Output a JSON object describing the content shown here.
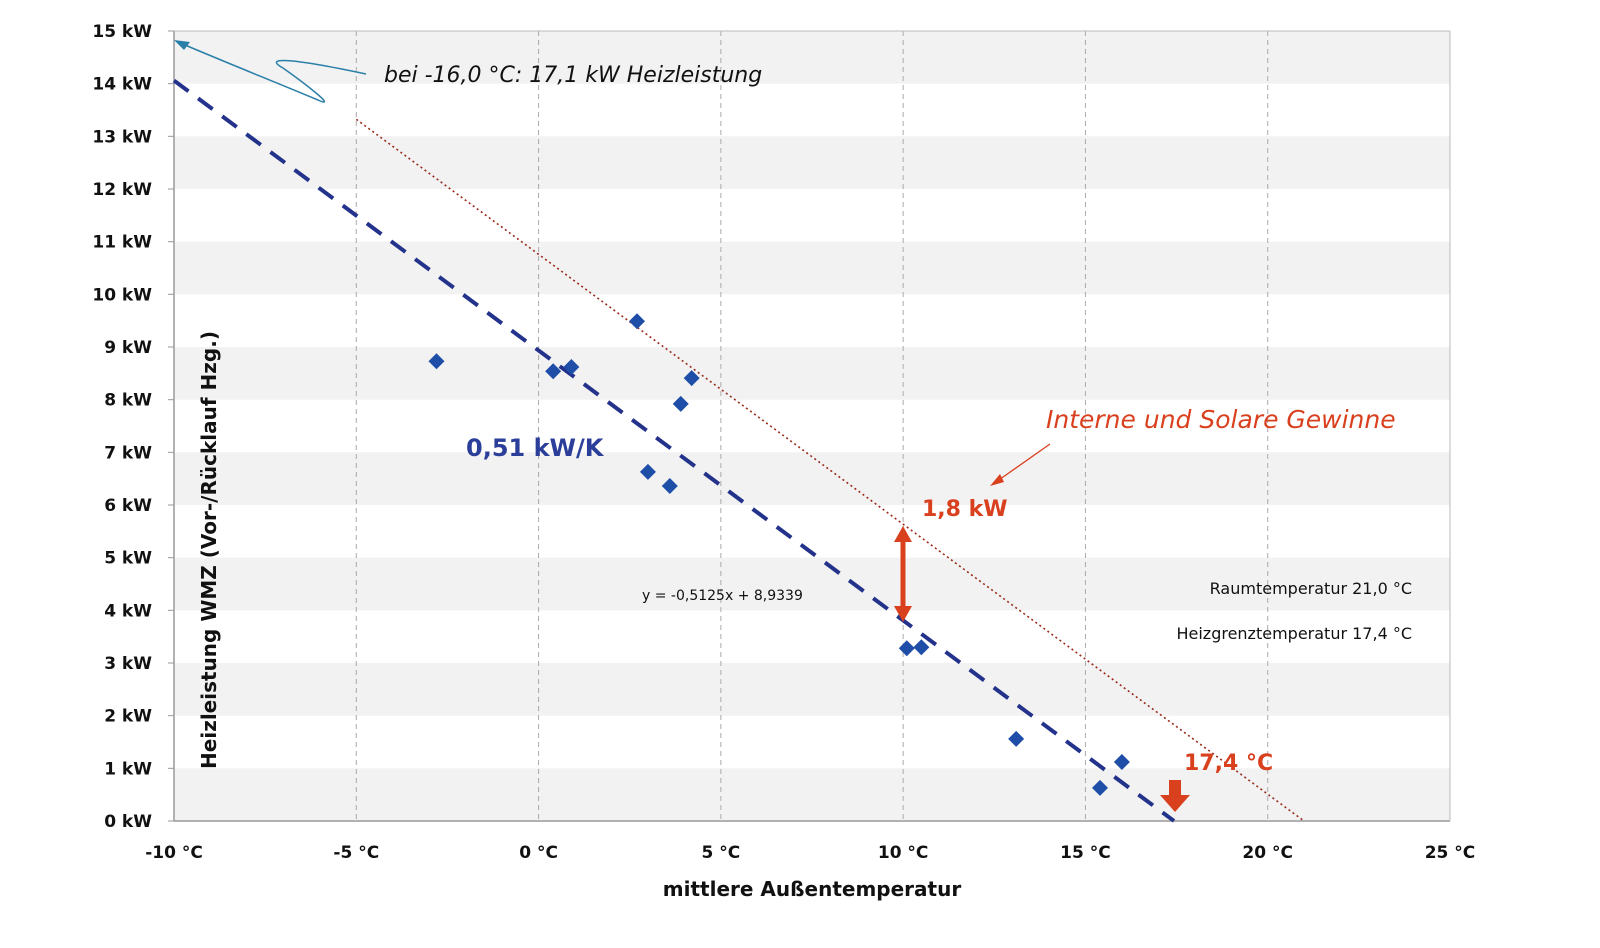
{
  "chart_data": {
    "type": "scatter",
    "xlabel": "mittlere Außentemperatur",
    "ylabel": "Heizleistung  WMZ  (Vor-/Rücklauf Hzg.)",
    "xlim": [
      -10,
      25
    ],
    "ylim": [
      0,
      15
    ],
    "x_ticks": [
      "-10 °C",
      "-5 °C",
      "0 °C",
      "5 °C",
      "10 °C",
      "15 °C",
      "20 °C",
      "25 °C"
    ],
    "y_ticks": [
      "0 kW",
      "1 kW",
      "2 kW",
      "3 kW",
      "4 kW",
      "5 kW",
      "6 kW",
      "7 kW",
      "8 kW",
      "9 kW",
      "10 kW",
      "11 kW",
      "12 kW",
      "13 kW",
      "14 kW",
      "15 kW"
    ],
    "grid": {
      "vertical": "dashed",
      "horizontal_bands": true
    },
    "points": [
      {
        "x": -2.8,
        "y": 8.73
      },
      {
        "x": 0.4,
        "y": 8.54
      },
      {
        "x": 0.9,
        "y": 8.62
      },
      {
        "x": 2.7,
        "y": 9.49
      },
      {
        "x": 4.2,
        "y": 8.41
      },
      {
        "x": 3.9,
        "y": 7.92
      },
      {
        "x": 3.0,
        "y": 6.63
      },
      {
        "x": 3.6,
        "y": 6.36
      },
      {
        "x": 10.1,
        "y": 3.28
      },
      {
        "x": 10.5,
        "y": 3.3
      },
      {
        "x": 13.1,
        "y": 1.56
      },
      {
        "x": 15.4,
        "y": 0.63
      },
      {
        "x": 16.0,
        "y": 1.12
      }
    ],
    "trendline": {
      "slope": -0.5125,
      "intercept": 8.9339,
      "x_range": [
        -10,
        17.43
      ],
      "equation": "y = -0,5125x + 8,9339"
    },
    "gains_line": {
      "slope": -0.5125,
      "intercept": 10.76,
      "x_range": [
        -5,
        21
      ]
    },
    "annotations": {
      "extrapolation": "bei -16,0 °C: 17,1 kW Heizleistung",
      "slope_label": "0,51 kW/K",
      "gains_title": "Interne und Solare Gewinne",
      "gains_value": "1,8 kW",
      "heating_limit": "17,4 °C",
      "room_temp": "Raumtemperatur 21,0 °C",
      "limit_temp": "Heizgrenztemperatur 17,4 °C"
    },
    "colors": {
      "points": "#1f4ea8",
      "trend": "#23328a",
      "gains": "#9a2a1a",
      "accent": "#d9401e",
      "arrow_note": "#2a7fa8",
      "band": "#f2f2f2"
    }
  }
}
